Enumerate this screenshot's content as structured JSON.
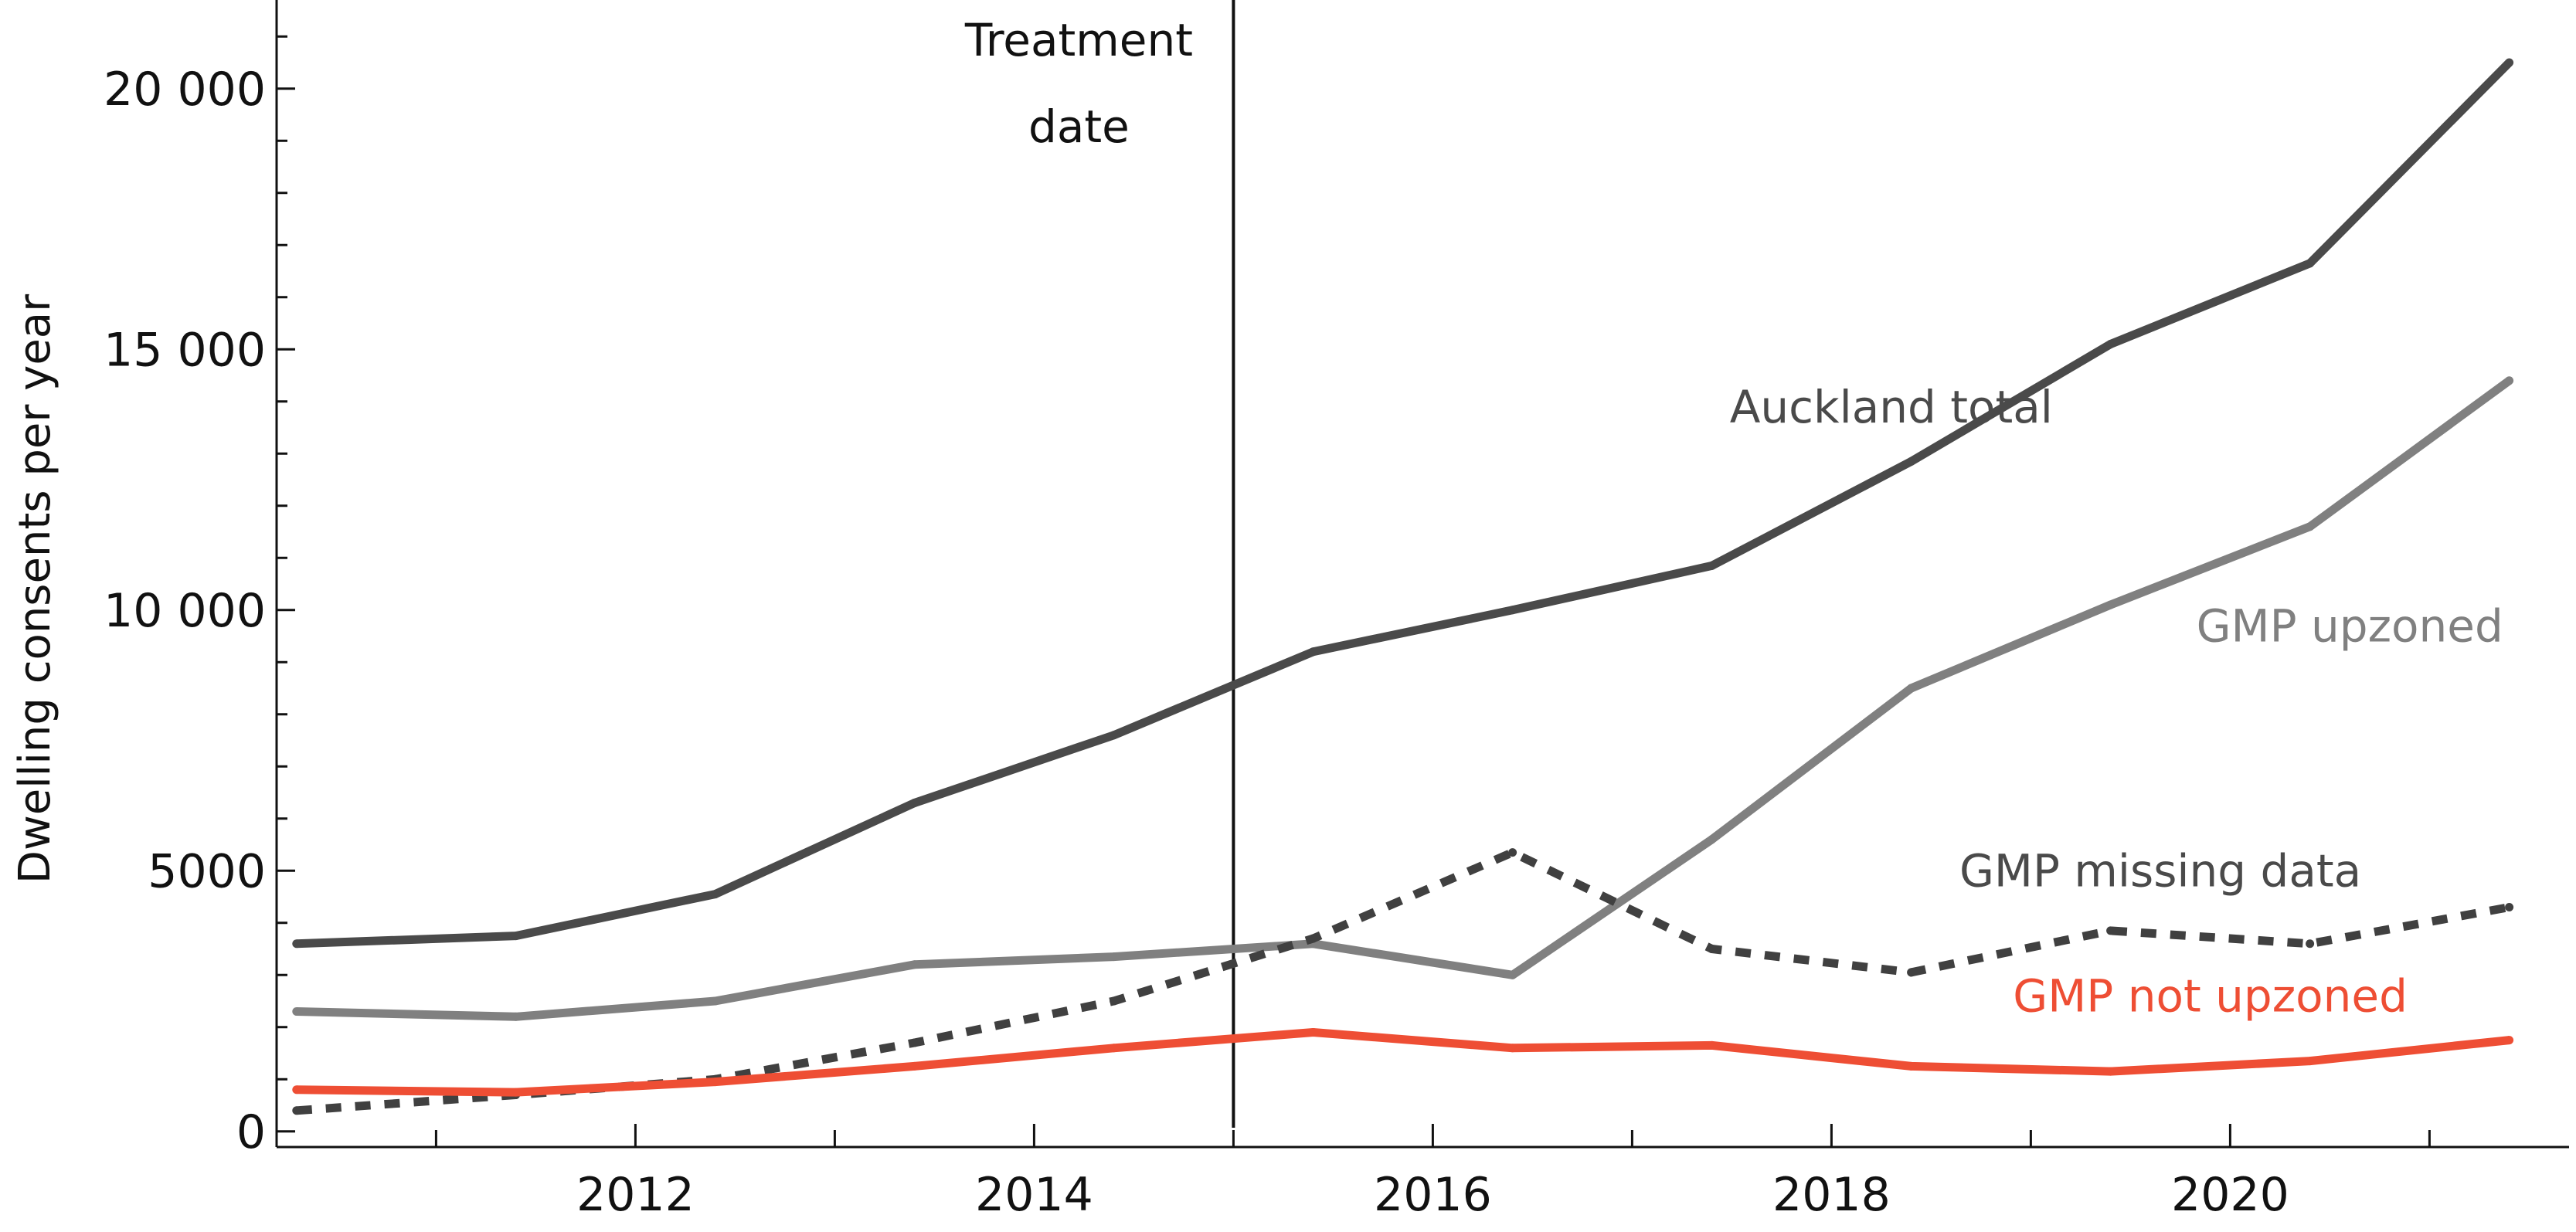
{
  "chart_data": {
    "type": "line",
    "title": "",
    "xlabel": "",
    "ylabel": "Dwelling consents per year",
    "xlim": [
      2010.2,
      2021.7
    ],
    "ylim": [
      -300,
      21700
    ],
    "x_ticks": [
      2012,
      2014,
      2016,
      2018,
      2020
    ],
    "y_ticks": [
      0,
      5000,
      10000,
      15000,
      20000
    ],
    "y_tick_labels": [
      "0",
      "5000",
      "10 000",
      "15 000",
      "20 000"
    ],
    "grid": false,
    "legend": "none",
    "treatment": {
      "x": 2015.0,
      "label_lines": [
        "Treatment",
        "date"
      ]
    },
    "x": [
      2010.3,
      2011.4,
      2012.4,
      2013.4,
      2014.4,
      2015.4,
      2016.4,
      2017.4,
      2018.4,
      2019.4,
      2020.4,
      2021.4
    ],
    "series": [
      {
        "name": "Auckland total",
        "color": "#4a4a4a",
        "dash": "solid",
        "values": [
          3600,
          3750,
          4550,
          6300,
          7600,
          9200,
          10000,
          10850,
          12850,
          15100,
          16650,
          20500
        ]
      },
      {
        "name": "GMP upzoned",
        "color": "#808080",
        "dash": "solid",
        "values": [
          2300,
          2200,
          2500,
          3200,
          3350,
          3600,
          3000,
          5600,
          8500,
          10100,
          11600,
          14400
        ]
      },
      {
        "name": "GMP missing data",
        "color": "#404040",
        "dash": "dotted",
        "values": [
          400,
          700,
          1000,
          1700,
          2500,
          3700,
          5350,
          3500,
          3050,
          3850,
          3600,
          4300
        ]
      },
      {
        "name": "GMP not upzoned",
        "color": "#ee4e34",
        "dash": "solid",
        "values": [
          800,
          750,
          950,
          1250,
          1600,
          1900,
          1600,
          1650,
          1250,
          1150,
          1350,
          1750
        ]
      }
    ],
    "annotations": [
      {
        "text": "Auckland total",
        "series": 0,
        "color": "#4a4a4a",
        "x": 2018.3,
        "y": 13600
      },
      {
        "text": "GMP upzoned",
        "series": 1,
        "color": "#808080",
        "x": 2020.6,
        "y": 9400
      },
      {
        "text": "GMP missing data",
        "series": 2,
        "color": "#4a4a4a",
        "x": 2019.65,
        "y": 4700
      },
      {
        "text": "GMP not upzoned",
        "series": 3,
        "color": "#ee4e34",
        "x": 2019.9,
        "y": 2300
      }
    ]
  }
}
